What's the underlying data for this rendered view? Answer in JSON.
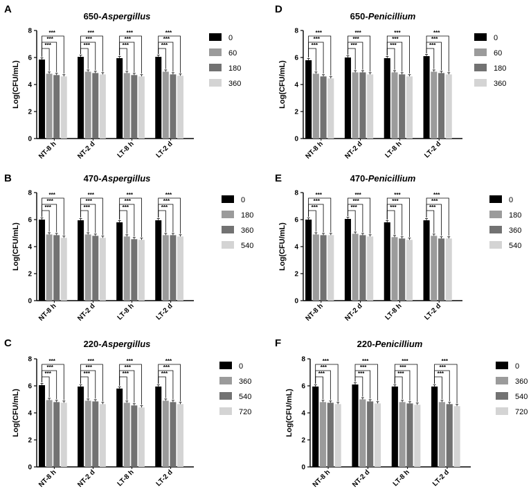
{
  "figure": {
    "panel_letters": [
      "A",
      "B",
      "C",
      "D",
      "E",
      "F"
    ]
  },
  "chart_data": [
    {
      "letter": "A",
      "type": "bar",
      "title_prefix": "650-",
      "title_genus": "Aspergillus",
      "ylabel": "Log(CFU/mL)",
      "ylim": [
        0,
        8
      ],
      "yticks": [
        "0",
        "2",
        "4",
        "6",
        "8"
      ],
      "categories": [
        "NT-8 h",
        "NT-2 d",
        "LT-8 h",
        "LT-2 d"
      ],
      "series": [
        {
          "name": "0",
          "values": [
            5.85,
            6.05,
            5.95,
            6.05
          ]
        },
        {
          "name": "60",
          "values": [
            4.8,
            4.95,
            4.85,
            4.95
          ]
        },
        {
          "name": "180",
          "values": [
            4.7,
            4.85,
            4.7,
            4.75
          ]
        },
        {
          "name": "360",
          "values": [
            4.6,
            4.75,
            4.6,
            4.65
          ]
        }
      ],
      "significance": "***",
      "colors": [
        "#000000",
        "#9b9b9b",
        "#727272",
        "#d4d4d4"
      ]
    },
    {
      "letter": "B",
      "type": "bar",
      "title_prefix": "470-",
      "title_genus": "Aspergillus",
      "ylabel": "Log(CFU/mL)",
      "ylim": [
        0,
        8
      ],
      "yticks": [
        "0",
        "2",
        "4",
        "6",
        "8"
      ],
      "categories": [
        "NT-8 h",
        "NT-2 d",
        "LT-8 h",
        "LT-2 d"
      ],
      "series": [
        {
          "name": "0",
          "values": [
            6.0,
            5.95,
            5.8,
            5.95
          ]
        },
        {
          "name": "180",
          "values": [
            4.9,
            4.9,
            4.75,
            4.85
          ]
        },
        {
          "name": "360",
          "values": [
            4.85,
            4.8,
            4.55,
            4.85
          ]
        },
        {
          "name": "540",
          "values": [
            4.65,
            4.65,
            4.5,
            4.75
          ]
        }
      ],
      "significance": "***",
      "colors": [
        "#000000",
        "#9b9b9b",
        "#727272",
        "#d4d4d4"
      ]
    },
    {
      "letter": "C",
      "type": "bar",
      "title_prefix": "220-",
      "title_genus": "Aspergillus",
      "ylabel": "Log(CFU/mL)",
      "ylim": [
        0,
        8
      ],
      "yticks": [
        "0",
        "2",
        "4",
        "6",
        "8"
      ],
      "categories": [
        "NT-8 h",
        "NT-2 d",
        "LT-8 h",
        "LT-2 d"
      ],
      "series": [
        {
          "name": "0",
          "values": [
            6.05,
            5.95,
            5.8,
            5.95
          ]
        },
        {
          "name": "360",
          "values": [
            4.95,
            4.9,
            4.75,
            4.9
          ]
        },
        {
          "name": "540",
          "values": [
            4.8,
            4.85,
            4.55,
            4.8
          ]
        },
        {
          "name": "720",
          "values": [
            4.75,
            4.65,
            4.4,
            4.65
          ]
        }
      ],
      "significance": "***",
      "colors": [
        "#000000",
        "#9b9b9b",
        "#727272",
        "#d4d4d4"
      ]
    },
    {
      "letter": "D",
      "type": "bar",
      "title_prefix": "650-",
      "title_genus": "Penicillium",
      "ylabel": "Log(CFU/mL)",
      "ylim": [
        0,
        8
      ],
      "yticks": [
        "0",
        "2",
        "4",
        "6",
        "8"
      ],
      "categories": [
        "NT-8 h",
        "NT-2 d",
        "LT-8 h",
        "LT-2 d"
      ],
      "series": [
        {
          "name": "0",
          "values": [
            5.8,
            6.0,
            5.95,
            6.1
          ]
        },
        {
          "name": "60",
          "values": [
            4.8,
            4.9,
            4.9,
            4.95
          ]
        },
        {
          "name": "180",
          "values": [
            4.6,
            4.9,
            4.75,
            4.85
          ]
        },
        {
          "name": "360",
          "values": [
            4.45,
            4.75,
            4.6,
            4.75
          ]
        }
      ],
      "significance": "***",
      "colors": [
        "#000000",
        "#9b9b9b",
        "#727272",
        "#d4d4d4"
      ]
    },
    {
      "letter": "E",
      "type": "bar",
      "title_prefix": "470-",
      "title_genus": "Penicillium",
      "ylabel": "Log(CFU/mL)",
      "ylim": [
        0,
        8
      ],
      "yticks": [
        "0",
        "2",
        "4",
        "6",
        "8"
      ],
      "categories": [
        "NT-8 h",
        "NT-2 d",
        "LT-8 h",
        "LT-2 d"
      ],
      "series": [
        {
          "name": "0",
          "values": [
            6.0,
            6.05,
            5.8,
            5.95
          ]
        },
        {
          "name": "180",
          "values": [
            4.9,
            4.95,
            4.7,
            4.8
          ]
        },
        {
          "name": "360",
          "values": [
            4.85,
            4.85,
            4.6,
            4.6
          ]
        },
        {
          "name": "540",
          "values": [
            4.85,
            4.75,
            4.5,
            4.6
          ]
        }
      ],
      "significance": "***",
      "colors": [
        "#000000",
        "#9b9b9b",
        "#727272",
        "#d4d4d4"
      ]
    },
    {
      "letter": "F",
      "type": "bar",
      "title_prefix": "220-",
      "title_genus": "Penicillium",
      "ylabel": "Log(CFU/mL)",
      "ylim": [
        0,
        8
      ],
      "yticks": [
        "0",
        "2",
        "4",
        "6",
        "8"
      ],
      "categories": [
        "NT-8 h",
        "NT-2 d",
        "LT-8 h",
        "LT-2 d"
      ],
      "series": [
        {
          "name": "0",
          "values": [
            5.95,
            6.1,
            5.95,
            5.95
          ]
        },
        {
          "name": "360",
          "values": [
            4.8,
            5.0,
            4.8,
            4.8
          ]
        },
        {
          "name": "540",
          "values": [
            4.75,
            4.85,
            4.7,
            4.65
          ]
        },
        {
          "name": "720",
          "values": [
            4.65,
            4.7,
            4.6,
            4.5
          ]
        }
      ],
      "significance": "***",
      "colors": [
        "#000000",
        "#9b9b9b",
        "#727272",
        "#d4d4d4"
      ]
    }
  ]
}
